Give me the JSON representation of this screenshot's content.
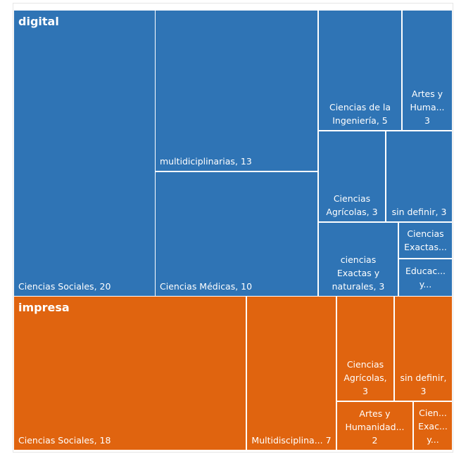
{
  "chart_data": {
    "type": "treemap",
    "groups": [
      {
        "name": "digital",
        "color": "#2f74b5",
        "children": [
          {
            "label": "Ciencias Sociales, 20",
            "value": 20
          },
          {
            "label": "multidiciplinarias, 13",
            "value": 13
          },
          {
            "label": "Ciencias Médicas, 10",
            "value": 10
          },
          {
            "label": "Ciencias de la Ingeniería, 5",
            "value": 5
          },
          {
            "label": "Artes y Huma... 3",
            "value": 3
          },
          {
            "label": "Ciencias Agrícolas, 3",
            "value": 3
          },
          {
            "label": "sin definir, 3",
            "value": 3
          },
          {
            "label": "ciencias Exactas y naturales, 3",
            "value": 3
          },
          {
            "label": "Ciencias Exactas...",
            "value": 1
          },
          {
            "label": "Educac... y...",
            "value": 1
          }
        ]
      },
      {
        "name": "impresa",
        "color": "#e0640f",
        "children": [
          {
            "label": "Ciencias Sociales, 18",
            "value": 18
          },
          {
            "label": "Multidisciplina... 7",
            "value": 7
          },
          {
            "label": "Ciencias Agrícolas, 3",
            "value": 3
          },
          {
            "label": "sin definir, 3",
            "value": 3
          },
          {
            "label": "Artes y Humanidad... 2",
            "value": 2
          },
          {
            "label": "Cien... Exac... y...",
            "value": 1
          }
        ]
      }
    ]
  }
}
